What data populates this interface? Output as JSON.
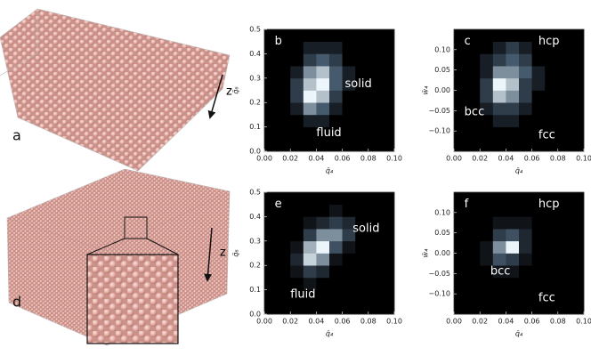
{
  "figures": [
    {
      "label": "a",
      "axis": "z"
    },
    {
      "label": "d",
      "axis": "z"
    }
  ],
  "chart_data": [
    {
      "type": "heatmap",
      "label": "b",
      "xlabel": "q̄₄",
      "ylabel": "q̄₆",
      "xlim": [
        0,
        0.1
      ],
      "ylim": [
        0,
        0.5
      ],
      "xticks": [
        {
          "value": 0,
          "label": "0.00"
        },
        {
          "value": 0.02,
          "label": "0.02"
        },
        {
          "value": 0.04,
          "label": "0.04"
        },
        {
          "value": 0.06,
          "label": "0.06"
        },
        {
          "value": 0.08,
          "label": "0.08"
        },
        {
          "value": 0.1,
          "label": "0.10"
        }
      ],
      "yticks": [
        {
          "value": 0,
          "label": "0.0"
        },
        0.1,
        0.2,
        0.3,
        0.4,
        0.5
      ],
      "annotations": [
        "solid",
        "fluid"
      ],
      "values": [
        [
          0,
          0,
          0,
          0,
          0,
          0,
          0,
          0,
          0,
          0
        ],
        [
          0,
          0,
          0,
          0,
          0,
          0,
          0,
          0,
          0,
          0
        ],
        [
          0,
          0,
          0,
          1,
          1,
          0,
          0,
          0,
          0,
          0
        ],
        [
          0,
          0,
          1,
          4,
          3,
          1,
          0,
          0,
          0,
          0
        ],
        [
          0,
          0,
          2,
          6,
          5,
          2,
          0,
          0,
          0,
          0
        ],
        [
          0,
          0,
          2,
          5,
          6,
          3,
          1,
          0,
          0,
          0
        ],
        [
          0,
          0,
          1,
          4,
          5,
          3,
          1,
          0,
          0,
          0
        ],
        [
          0,
          0,
          0,
          2,
          3,
          2,
          0,
          0,
          0,
          0
        ],
        [
          0,
          0,
          0,
          1,
          1,
          1,
          0,
          0,
          0,
          0
        ],
        [
          0,
          0,
          0,
          0,
          0,
          0,
          0,
          0,
          0,
          0
        ]
      ]
    },
    {
      "type": "heatmap",
      "label": "c",
      "xlabel": "q̄₄",
      "ylabel": "w̄₄",
      "xlim": [
        0,
        0.1
      ],
      "ylim": [
        -0.15,
        0.15
      ],
      "xticks": [
        {
          "value": 0,
          "label": "0.00"
        },
        {
          "value": 0.02,
          "label": "0.02"
        },
        {
          "value": 0.04,
          "label": "0.04"
        },
        {
          "value": 0.06,
          "label": "0.06"
        },
        {
          "value": 0.08,
          "label": "0.08"
        },
        {
          "value": 0.1,
          "label": "0.10"
        }
      ],
      "yticks": [
        {
          "value": -0.1,
          "label": "−0.10"
        },
        {
          "value": -0.05,
          "label": "−0.05"
        },
        {
          "value": 0,
          "label": "0.00"
        },
        0.05,
        {
          "value": 0.1,
          "label": "0.10"
        }
      ],
      "annotations": [
        "hcp",
        "bcc",
        "fcc"
      ],
      "values": [
        [
          0,
          0,
          0,
          0,
          0,
          0,
          0,
          0,
          0,
          0
        ],
        [
          0,
          0,
          0,
          0,
          0,
          0,
          0,
          0,
          0,
          0
        ],
        [
          0,
          0,
          0,
          1,
          1,
          0,
          0,
          0,
          0,
          0
        ],
        [
          0,
          0,
          1,
          2,
          2,
          1,
          0,
          0,
          0,
          0
        ],
        [
          0,
          0,
          2,
          5,
          4,
          2,
          0,
          0,
          0,
          0
        ],
        [
          0,
          0,
          2,
          6,
          5,
          2,
          1,
          0,
          0,
          0
        ],
        [
          0,
          0,
          1,
          4,
          4,
          3,
          1,
          0,
          0,
          0
        ],
        [
          0,
          0,
          1,
          2,
          3,
          2,
          0,
          0,
          0,
          0
        ],
        [
          0,
          0,
          0,
          1,
          2,
          1,
          0,
          0,
          0,
          0
        ],
        [
          0,
          0,
          0,
          0,
          0,
          0,
          0,
          0,
          0,
          0
        ]
      ]
    },
    {
      "type": "heatmap",
      "label": "e",
      "xlabel": "q̄₄",
      "ylabel": "q̄₆",
      "xlim": [
        0,
        0.1
      ],
      "ylim": [
        0,
        0.5
      ],
      "xticks": [
        {
          "value": 0,
          "label": "0.00"
        },
        {
          "value": 0.02,
          "label": "0.02"
        },
        {
          "value": 0.04,
          "label": "0.04"
        },
        {
          "value": 0.06,
          "label": "0.06"
        },
        {
          "value": 0.08,
          "label": "0.08"
        },
        {
          "value": 0.1,
          "label": "0.10"
        }
      ],
      "yticks": [
        {
          "value": 0,
          "label": "0.0"
        },
        0.1,
        0.2,
        0.3,
        0.4,
        0.5
      ],
      "annotations": [
        "solid",
        "fluid"
      ],
      "values": [
        [
          0,
          0,
          0,
          0,
          0,
          0,
          0,
          0,
          0,
          0
        ],
        [
          0,
          0,
          0,
          0,
          0,
          0,
          0,
          0,
          0,
          0
        ],
        [
          0,
          0,
          0,
          1,
          0,
          0,
          0,
          0,
          0,
          0
        ],
        [
          0,
          0,
          1,
          3,
          2,
          0,
          0,
          0,
          0,
          0
        ],
        [
          0,
          0,
          2,
          8,
          6,
          1,
          0,
          0,
          0,
          0
        ],
        [
          0,
          0,
          1,
          7,
          9,
          4,
          1,
          0,
          0,
          0
        ],
        [
          0,
          0,
          0,
          3,
          6,
          6,
          3,
          0,
          0,
          0
        ],
        [
          0,
          0,
          0,
          1,
          2,
          3,
          2,
          0,
          0,
          0
        ],
        [
          0,
          0,
          0,
          0,
          0,
          1,
          0,
          0,
          0,
          0
        ],
        [
          0,
          0,
          0,
          0,
          0,
          0,
          0,
          0,
          0,
          0
        ]
      ]
    },
    {
      "type": "heatmap",
      "label": "f",
      "xlabel": "q̄₄",
      "ylabel": "w̄₄",
      "xlim": [
        0,
        0.1
      ],
      "ylim": [
        -0.15,
        0.15
      ],
      "xticks": [
        {
          "value": 0,
          "label": "0.00"
        },
        {
          "value": 0.02,
          "label": "0.02"
        },
        {
          "value": 0.04,
          "label": "0.04"
        },
        {
          "value": 0.06,
          "label": "0.06"
        },
        {
          "value": 0.08,
          "label": "0.08"
        },
        {
          "value": 0.1,
          "label": "0.10"
        }
      ],
      "yticks": [
        {
          "value": -0.1,
          "label": "−0.10"
        },
        {
          "value": -0.05,
          "label": "−0.05"
        },
        {
          "value": 0,
          "label": "0.00"
        },
        0.05,
        {
          "value": 0.1,
          "label": "0.10"
        }
      ],
      "annotations": [
        "hcp",
        "bcc",
        "fcc"
      ],
      "values": [
        [
          0,
          0,
          0,
          0,
          0,
          0,
          0,
          0,
          0,
          0
        ],
        [
          0,
          0,
          0,
          0,
          0,
          0,
          0,
          0,
          0,
          0
        ],
        [
          0,
          0,
          0,
          0,
          0,
          0,
          0,
          0,
          0,
          0
        ],
        [
          0,
          0,
          0,
          1,
          1,
          0,
          0,
          0,
          0,
          0
        ],
        [
          0,
          0,
          1,
          4,
          3,
          1,
          0,
          0,
          0,
          0
        ],
        [
          0,
          0,
          1,
          6,
          9,
          2,
          0,
          0,
          0,
          0
        ],
        [
          0,
          0,
          0,
          3,
          4,
          2,
          0,
          0,
          0,
          0
        ],
        [
          0,
          0,
          0,
          1,
          1,
          1,
          0,
          0,
          0,
          0
        ],
        [
          0,
          0,
          0,
          0,
          0,
          0,
          0,
          0,
          0,
          0
        ],
        [
          0,
          0,
          0,
          0,
          0,
          0,
          0,
          0,
          0,
          0
        ]
      ]
    }
  ]
}
